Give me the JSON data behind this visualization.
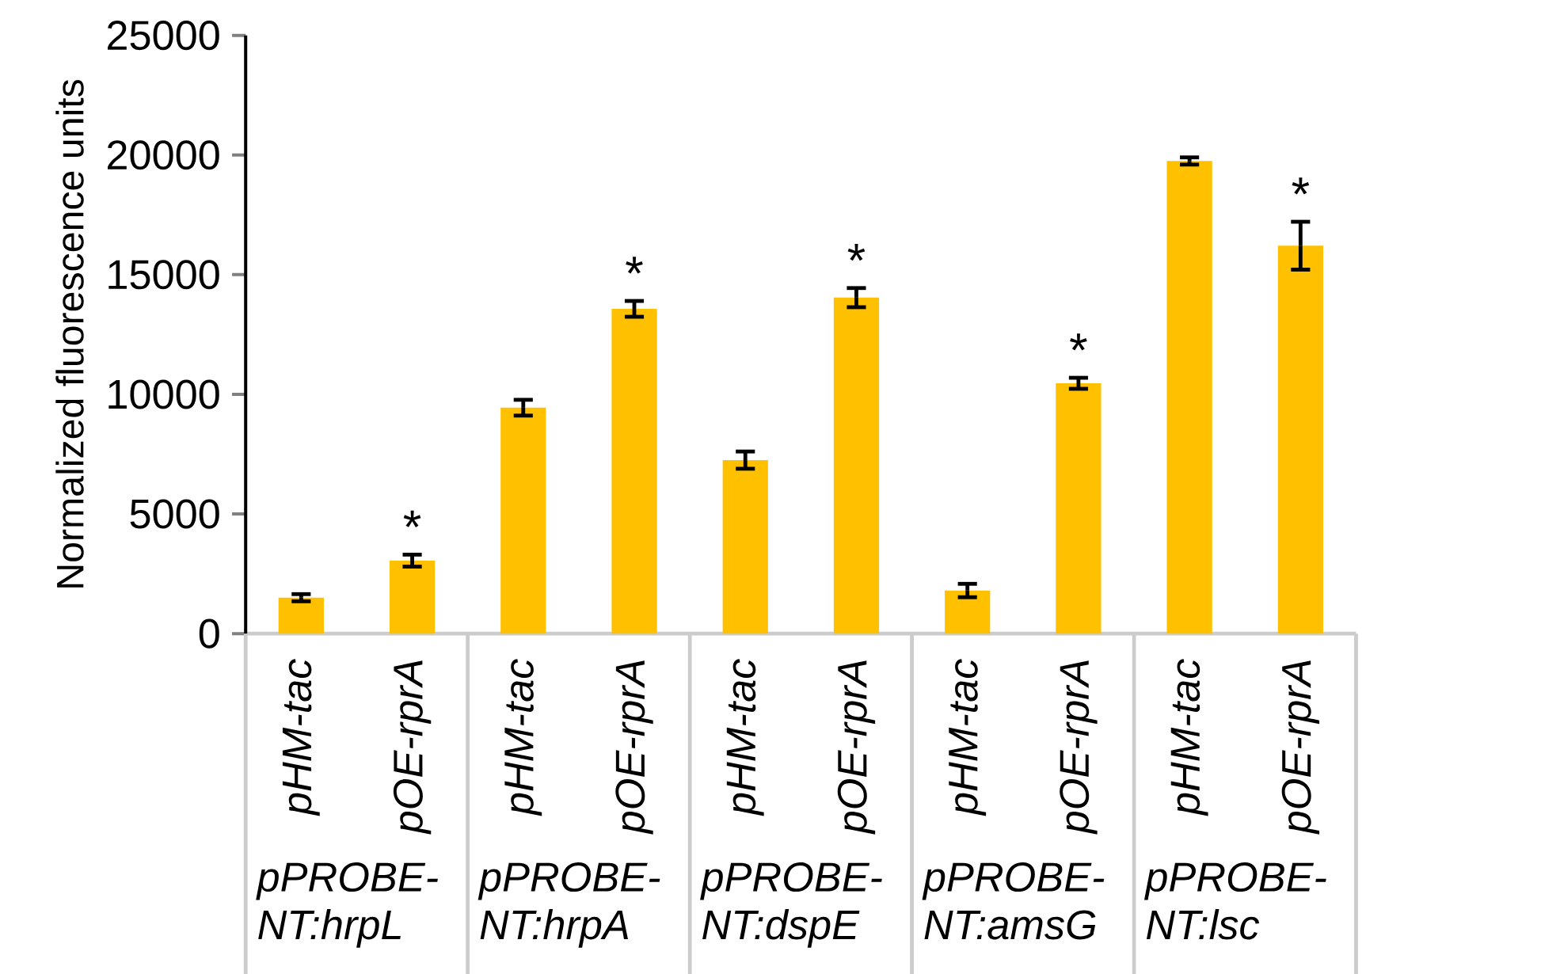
{
  "chart_data": {
    "type": "bar",
    "ylabel": "Normalized fluorescence units",
    "categories": [
      "pHM-tac",
      "pOE-rprA",
      "pHM-tac",
      "pOE-rprA",
      "pHM-tac",
      "pOE-rprA",
      "pHM-tac",
      "pOE-rprA",
      "pHM-tac",
      "pOE-rprA"
    ],
    "values": [
      1500,
      3050,
      9440,
      13570,
      7250,
      14040,
      1800,
      10460,
      19750,
      16210
    ],
    "errors": [
      150,
      250,
      330,
      330,
      360,
      400,
      280,
      230,
      150,
      1000
    ],
    "value_labels": [
      null,
      "*",
      null,
      "*",
      null,
      "*",
      null,
      "*",
      null,
      "*"
    ],
    "color": "#ffc000",
    "ylim": [
      0,
      25000
    ],
    "yticks": [
      0,
      5000,
      10000,
      15000,
      20000,
      25000
    ],
    "annotations": [
      "pPROBE-NT:hrpL",
      "pPROBE-NT:hrpA",
      "pPROBE-NT:dspE",
      "pPROBE-NT:amsG",
      "pPROBE-NT:lsc"
    ],
    "grid": false
  }
}
